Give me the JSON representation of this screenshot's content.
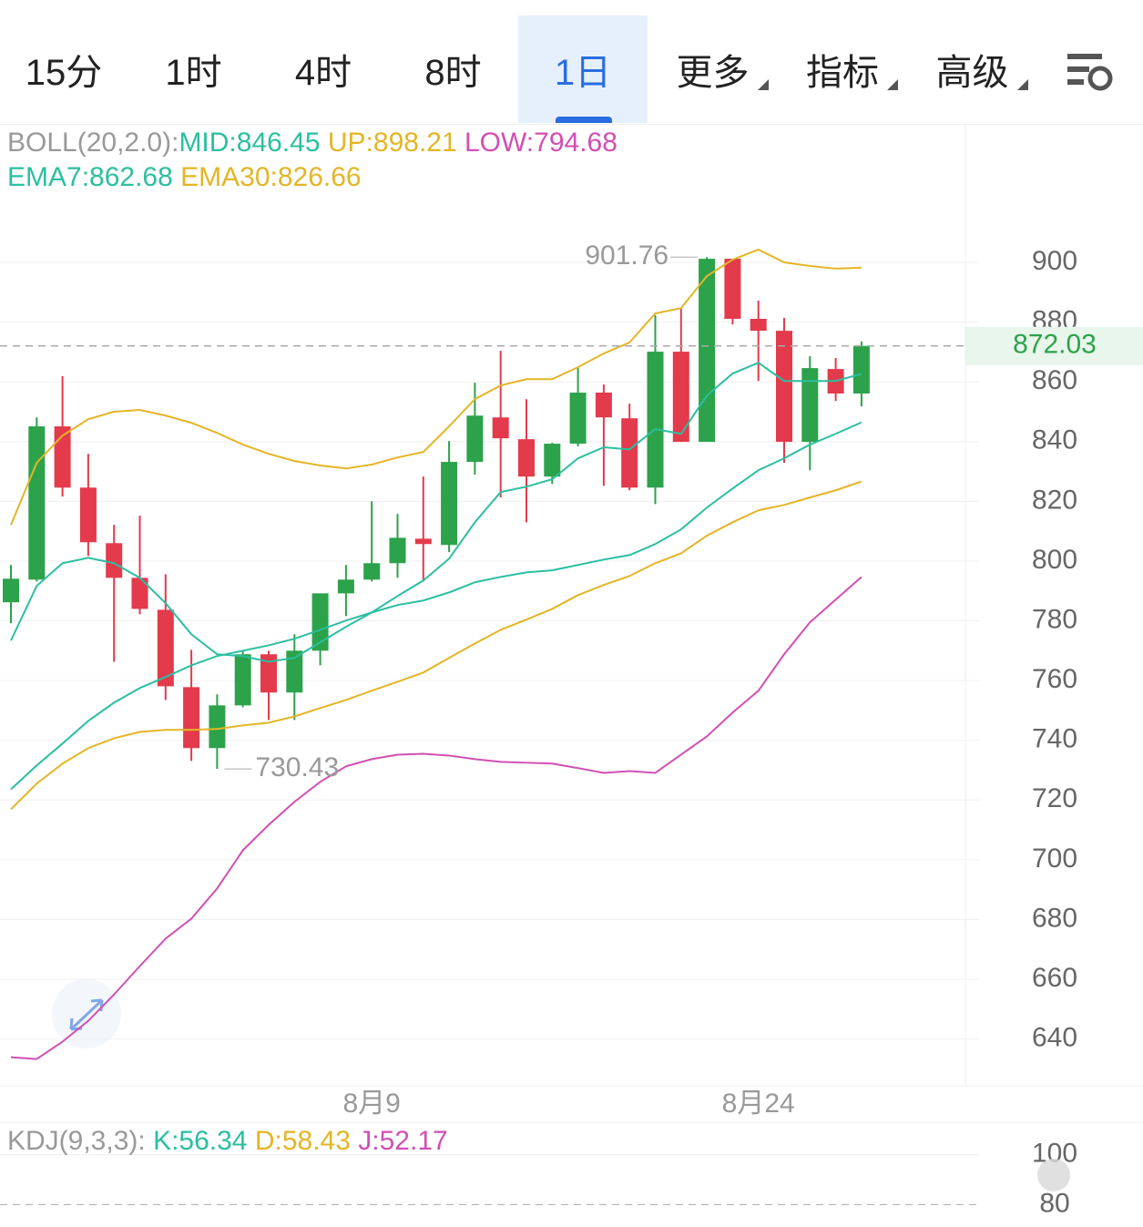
{
  "tabs": [
    {
      "label": "15分"
    },
    {
      "label": "1时"
    },
    {
      "label": "4时"
    },
    {
      "label": "8时"
    },
    {
      "label": "1日",
      "active": true
    },
    {
      "label": "更多",
      "dropdown": true
    },
    {
      "label": "指标",
      "dropdown": true
    },
    {
      "label": "高级",
      "dropdown": true
    }
  ],
  "chart_data": [
    {
      "type": "candlestick",
      "indicator_label": "BOLL(20,2.0):",
      "categories": [
        null,
        null,
        null,
        null,
        null,
        null,
        null,
        null,
        null,
        null,
        null,
        null,
        null,
        null,
        "8月9",
        null,
        null,
        null,
        null,
        null,
        null,
        null,
        null,
        null,
        null,
        null,
        null,
        null,
        null,
        "8月24",
        null,
        null,
        null,
        null
      ],
      "open": [
        786.2,
        793.8,
        845.1,
        824.6,
        806.0,
        794.4,
        783.7,
        757.8,
        737.4,
        751.7,
        768.8,
        756.0,
        770.0,
        789.2,
        793.8,
        799.3,
        807.5,
        805.4,
        833.2,
        848.1,
        840.8,
        828.3,
        839.3,
        856.4,
        847.8,
        824.6,
        870.1,
        839.9,
        901.2,
        881.1,
        877.1,
        839.9,
        864.3,
        856.1
      ],
      "high": [
        798.7,
        848.1,
        861.9,
        835.9,
        812.1,
        815.2,
        795.6,
        770.3,
        755.4,
        770.0,
        770.0,
        775.5,
        789.2,
        798.7,
        820.0,
        815.8,
        828.3,
        840.2,
        859.7,
        870.4,
        854.2,
        839.6,
        864.6,
        859.1,
        852.7,
        882.3,
        884.7,
        901.76,
        901.2,
        887.2,
        881.4,
        868.6,
        868.0,
        873.5
      ],
      "low": [
        779.2,
        793.2,
        821.6,
        801.7,
        766.3,
        782.2,
        753.5,
        733.1,
        730.43,
        751.1,
        746.8,
        746.8,
        765.1,
        781.6,
        793.2,
        794.4,
        793.2,
        803.0,
        828.9,
        821.3,
        813.0,
        825.8,
        838.4,
        825.2,
        823.7,
        819.1,
        839.9,
        839.9,
        879.2,
        860.3,
        832.9,
        830.4,
        853.6,
        851.8
      ],
      "close": [
        794.1,
        845.1,
        824.6,
        806.3,
        794.4,
        784.0,
        758.1,
        737.4,
        751.7,
        768.8,
        756.0,
        770.0,
        789.2,
        793.8,
        799.3,
        807.8,
        805.7,
        833.2,
        848.7,
        841.1,
        828.3,
        839.3,
        856.4,
        848.1,
        824.6,
        870.1,
        839.9,
        901.2,
        881.1,
        877.1,
        839.9,
        864.6,
        856.1,
        872.03
      ],
      "up_color": "#2ca24a",
      "down_color": "#e33a4c",
      "max_label_index": 27,
      "min_label_index": 8,
      "series": [
        {
          "name": "MID:",
          "color": "#2bbfa0",
          "last_value": 846.45,
          "values": [
            723.6,
            731.6,
            738.9,
            746.5,
            752.6,
            757.5,
            761.2,
            765.1,
            768.2,
            770.0,
            771.8,
            774.0,
            777.0,
            780.1,
            782.8,
            785.3,
            786.8,
            789.5,
            792.9,
            794.7,
            796.2,
            796.9,
            798.7,
            800.5,
            802.0,
            805.7,
            810.6,
            817.9,
            824.3,
            830.4,
            834.4,
            839.0,
            842.6,
            846.45
          ]
        },
        {
          "name": "UP:",
          "color": "#e4b526",
          "last_value": 898.21,
          "values": [
            812.1,
            832.9,
            842.0,
            847.5,
            850.0,
            850.6,
            848.7,
            846.3,
            842.9,
            839.0,
            835.9,
            833.5,
            832.0,
            831.0,
            832.3,
            834.7,
            836.5,
            845.1,
            854.2,
            858.8,
            860.9,
            860.9,
            864.9,
            869.5,
            873.2,
            882.9,
            884.7,
            895.4,
            900.9,
            904.3,
            900.0,
            898.8,
            897.9,
            898.21
          ]
        },
        {
          "name": "LOW:",
          "color": "#d24fb3",
          "last_value": 794.68,
          "values": [
            633.9,
            633.3,
            639.1,
            646.1,
            654.9,
            664.4,
            673.6,
            680.3,
            690.4,
            703.2,
            711.7,
            719.4,
            726.1,
            731.3,
            733.7,
            735.2,
            735.5,
            734.9,
            733.7,
            732.8,
            732.5,
            732.2,
            730.7,
            729.1,
            729.7,
            729.1,
            735.2,
            741.3,
            749.3,
            756.6,
            768.8,
            779.5,
            787.1,
            794.68
          ]
        },
        {
          "name": "EMA7:",
          "color": "#2bbfa0",
          "last_value": 862.68,
          "values": [
            773.4,
            791.7,
            799.3,
            801.1,
            799.3,
            794.4,
            785.9,
            775.5,
            768.8,
            768.2,
            766.3,
            767.6,
            772.8,
            778.0,
            782.8,
            788.3,
            793.5,
            800.8,
            813.0,
            823.1,
            824.9,
            827.4,
            834.4,
            838.1,
            837.4,
            844.2,
            842.6,
            855.4,
            862.8,
            866.4,
            860.3,
            860.3,
            860.3,
            862.68
          ]
        },
        {
          "name": "EMA30:",
          "color": "#e4b526",
          "last_value": 826.66,
          "values": [
            716.9,
            725.5,
            732.2,
            737.4,
            740.7,
            742.8,
            743.5,
            743.5,
            743.8,
            745.0,
            745.9,
            748.0,
            750.8,
            753.5,
            756.6,
            759.6,
            762.7,
            767.6,
            772.4,
            777.0,
            780.4,
            784.0,
            788.6,
            792.0,
            795.0,
            799.3,
            802.6,
            808.5,
            813.0,
            817.0,
            818.8,
            821.3,
            823.7,
            826.66
          ]
        }
      ],
      "ylim": [
        628,
        918
      ],
      "yticks": [
        640,
        660,
        680,
        700,
        720,
        740,
        760,
        780,
        800,
        820,
        840,
        860,
        880,
        900
      ],
      "grid": true,
      "last_price_line": true
    },
    {
      "type": "kdj",
      "indicator_label": "KDJ(9,3,3):",
      "series": [
        {
          "name": "K:",
          "color": "#2bbfa0",
          "last_value": 56.34
        },
        {
          "name": "D:",
          "color": "#e4b526",
          "last_value": 58.43
        },
        {
          "name": "J:",
          "color": "#d24fb3",
          "last_value": 52.17
        }
      ],
      "ylim": [
        71,
        113
      ],
      "yticks": [
        80,
        100
      ]
    }
  ]
}
